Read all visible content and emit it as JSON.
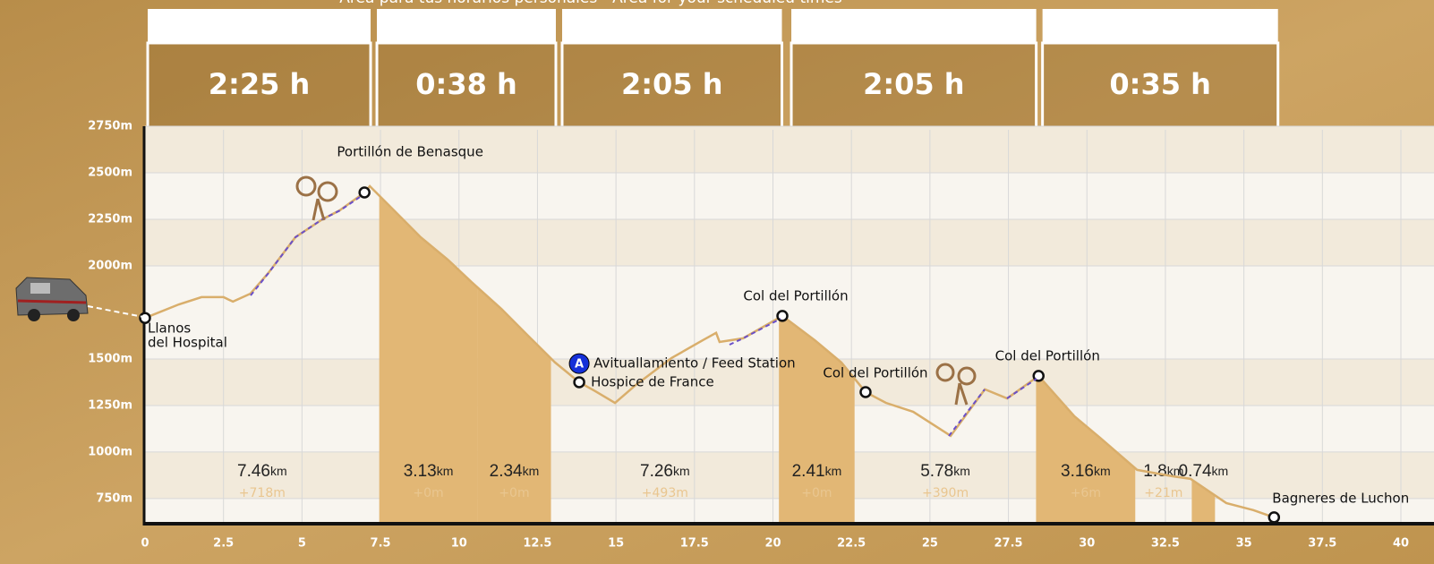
{
  "chart_data": {
    "type": "area",
    "header_note": "Área para tus horarios personales - Area for your scheduled times",
    "time_blocks": [
      {
        "label": "2:25 h",
        "start": 0,
        "end": 7.1
      },
      {
        "label": "0:38 h",
        "start": 7.3,
        "end": 13
      },
      {
        "label": "2:05 h",
        "start": 13.2,
        "end": 20.2
      },
      {
        "label": "2:05 h",
        "start": 20.5,
        "end": 28.3
      },
      {
        "label": "0:35 h",
        "start": 28.5,
        "end": 36
      }
    ],
    "x": [
      0,
      1.08,
      1.8,
      2.5,
      2.8,
      3.36,
      3.93,
      4.79,
      5.65,
      6.2,
      6.99,
      7.16,
      7.93,
      8.78,
      9.64,
      10.4,
      11.35,
      12.2,
      13.06,
      13.83,
      14.34,
      14.97,
      15.63,
      16.77,
      17.77,
      18.19,
      18.3,
      19.05,
      20.3,
      21.33,
      22.18,
      22.95,
      23.6,
      24.47,
      25.66,
      26.75,
      27.46,
      28.46,
      29.6,
      30.45,
      31.6,
      32.73,
      33.3,
      34.44,
      35.3,
      35.96
    ],
    "values": [
      1720,
      1793,
      1832,
      1832,
      1808,
      1851,
      1962,
      2154,
      2250,
      2298,
      2394,
      2428,
      2298,
      2154,
      2034,
      1913,
      1769,
      1625,
      1481,
      1375,
      1327,
      1264,
      1360,
      1505,
      1601,
      1640,
      1591,
      1611,
      1731,
      1601,
      1481,
      1322,
      1264,
      1216,
      1087,
      1337,
      1288,
      1409,
      1192,
      1072,
      904,
      870,
      856,
      726,
      688,
      649
    ],
    "color": "#d9ae6b",
    "fill_color": "#e2b775",
    "segment_unit": "km",
    "segments": [
      {
        "distance": 7.46,
        "gain": 718,
        "gain_label": "+718m",
        "descent": false
      },
      {
        "distance": 3.13,
        "gain": 0,
        "gain_label": "+0m",
        "descent": true
      },
      {
        "distance": 2.34,
        "gain": 0,
        "gain_label": "+0m",
        "descent": true
      },
      {
        "distance": 7.26,
        "gain": 493,
        "gain_label": "+493m",
        "descent": false
      },
      {
        "distance": 2.41,
        "gain": 0,
        "gain_label": "+0m",
        "descent": true
      },
      {
        "distance": 5.78,
        "gain": 390,
        "gain_label": "+390m",
        "descent": false
      },
      {
        "distance": 3.16,
        "gain": 6,
        "gain_label": "+6m",
        "descent": true
      },
      {
        "distance": 1.8,
        "gain": 21,
        "gain_label": "+21m",
        "descent": false
      },
      {
        "distance": 0.74,
        "descent": true
      }
    ],
    "waypoints": [
      {
        "lines": [
          "Llanos",
          "del Hospital"
        ],
        "x": 0,
        "y": 1720
      },
      {
        "lines": [
          "Portillón de Benasque"
        ],
        "x": 6.99,
        "y": 2394
      },
      {
        "lines": [
          "Hospice de France"
        ],
        "x": 13.83,
        "y": 1375
      },
      {
        "lines": [
          "Col del Portillón"
        ],
        "x": 20.3,
        "y": 1731
      },
      {
        "lines": [
          "Col del Portillón"
        ],
        "x": 22.95,
        "y": 1322
      },
      {
        "lines": [
          "Col del Portillón"
        ],
        "x": 28.46,
        "y": 1409
      },
      {
        "lines": [
          "Bagneres de Luchon"
        ],
        "x": 35.96,
        "y": 649
      }
    ],
    "feed_station": {
      "badge": "A",
      "label": "Avituallamiento / Feed Station",
      "x": 13.83,
      "y": 1475
    },
    "xlim": [
      0,
      40
    ],
    "xticks": [
      0,
      2.5,
      5,
      7.5,
      10,
      12.5,
      15,
      17.5,
      20,
      22.5,
      25,
      27.5,
      30,
      32.5,
      35,
      37.5,
      40
    ],
    "ylim": [
      615,
      2750
    ],
    "yticks": [
      {
        "value": 750,
        "label": "750m"
      },
      {
        "value": 1000,
        "label": "1000m"
      },
      {
        "value": 1250,
        "label": "1250m"
      },
      {
        "value": 1500,
        "label": "1500m"
      },
      {
        "value": 2000,
        "label": "2000m"
      },
      {
        "value": 2250,
        "label": "2250m"
      },
      {
        "value": 2500,
        "label": "2500m"
      },
      {
        "value": 2750,
        "label": "2750m"
      }
    ],
    "grid": true
  }
}
